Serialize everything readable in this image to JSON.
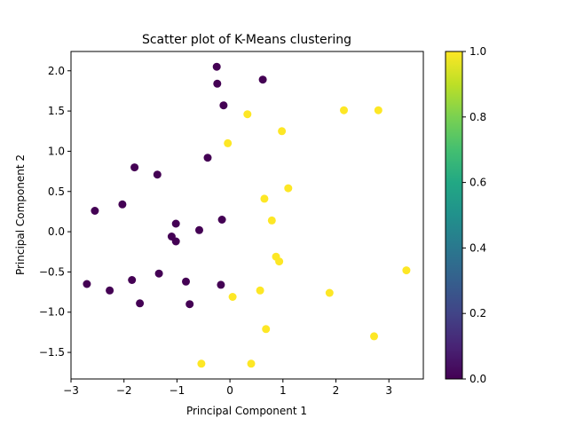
{
  "chart_data": {
    "type": "scatter",
    "title": "Scatter plot of K-Means clustering",
    "xlabel": "Principal Component 1",
    "ylabel": "Principal Component 2",
    "xlim": [
      -3.0,
      3.65
    ],
    "ylim": [
      -1.83,
      2.24
    ],
    "xticks": [
      -3,
      -2,
      -1,
      0,
      1,
      2,
      3
    ],
    "yticks": [
      -1.5,
      -1.0,
      -0.5,
      0.0,
      0.5,
      1.0,
      1.5,
      2.0
    ],
    "xtick_labels": [
      "−3",
      "−2",
      "−1",
      "0",
      "1",
      "2",
      "3"
    ],
    "ytick_labels": [
      "−1.5",
      "−1.0",
      "−0.5",
      "0.0",
      "0.5",
      "1.0",
      "1.5",
      "2.0"
    ],
    "grid": false,
    "colormap": "viridis",
    "colors": {
      "cluster_0": "#440154",
      "cluster_1": "#fde725"
    },
    "colorbar": {
      "range": [
        0.0,
        1.0
      ],
      "ticks": [
        0.0,
        0.2,
        0.4,
        0.6,
        0.8,
        1.0
      ],
      "tick_labels": [
        "0.0",
        "0.2",
        "0.4",
        "0.6",
        "0.8",
        "1.0"
      ]
    },
    "points": [
      {
        "x": -0.25,
        "y": 2.05,
        "c": 0
      },
      {
        "x": -0.24,
        "y": 1.84,
        "c": 0
      },
      {
        "x": 0.62,
        "y": 1.89,
        "c": 0
      },
      {
        "x": -0.12,
        "y": 1.57,
        "c": 0
      },
      {
        "x": -0.42,
        "y": 0.92,
        "c": 0
      },
      {
        "x": -1.8,
        "y": 0.8,
        "c": 0
      },
      {
        "x": -1.37,
        "y": 0.71,
        "c": 0
      },
      {
        "x": -2.55,
        "y": 0.26,
        "c": 0
      },
      {
        "x": -2.03,
        "y": 0.34,
        "c": 0
      },
      {
        "x": -1.02,
        "y": 0.1,
        "c": 0
      },
      {
        "x": -0.15,
        "y": 0.15,
        "c": 0
      },
      {
        "x": -0.58,
        "y": 0.02,
        "c": 0
      },
      {
        "x": -1.1,
        "y": -0.06,
        "c": 0
      },
      {
        "x": -1.02,
        "y": -0.12,
        "c": 0
      },
      {
        "x": -2.7,
        "y": -0.65,
        "c": 0
      },
      {
        "x": -2.27,
        "y": -0.73,
        "c": 0
      },
      {
        "x": -1.85,
        "y": -0.6,
        "c": 0
      },
      {
        "x": -1.34,
        "y": -0.52,
        "c": 0
      },
      {
        "x": -0.83,
        "y": -0.62,
        "c": 0
      },
      {
        "x": -0.17,
        "y": -0.66,
        "c": 0
      },
      {
        "x": -1.7,
        "y": -0.89,
        "c": 0
      },
      {
        "x": -0.76,
        "y": -0.9,
        "c": 0
      },
      {
        "x": 0.33,
        "y": 1.46,
        "c": 1
      },
      {
        "x": -0.04,
        "y": 1.1,
        "c": 1
      },
      {
        "x": 2.15,
        "y": 1.51,
        "c": 1
      },
      {
        "x": 2.8,
        "y": 1.51,
        "c": 1
      },
      {
        "x": 0.98,
        "y": 1.25,
        "c": 1
      },
      {
        "x": 1.1,
        "y": 0.54,
        "c": 1
      },
      {
        "x": 0.65,
        "y": 0.41,
        "c": 1
      },
      {
        "x": 0.79,
        "y": 0.14,
        "c": 1
      },
      {
        "x": 0.87,
        "y": -0.31,
        "c": 1
      },
      {
        "x": 0.93,
        "y": -0.37,
        "c": 1
      },
      {
        "x": 3.33,
        "y": -0.48,
        "c": 1
      },
      {
        "x": 0.57,
        "y": -0.73,
        "c": 1
      },
      {
        "x": 1.88,
        "y": -0.76,
        "c": 1
      },
      {
        "x": 0.05,
        "y": -0.81,
        "c": 1
      },
      {
        "x": 0.68,
        "y": -1.21,
        "c": 1
      },
      {
        "x": 2.72,
        "y": -1.3,
        "c": 1
      },
      {
        "x": -0.54,
        "y": -1.64,
        "c": 1
      },
      {
        "x": 0.4,
        "y": -1.64,
        "c": 1
      }
    ]
  }
}
